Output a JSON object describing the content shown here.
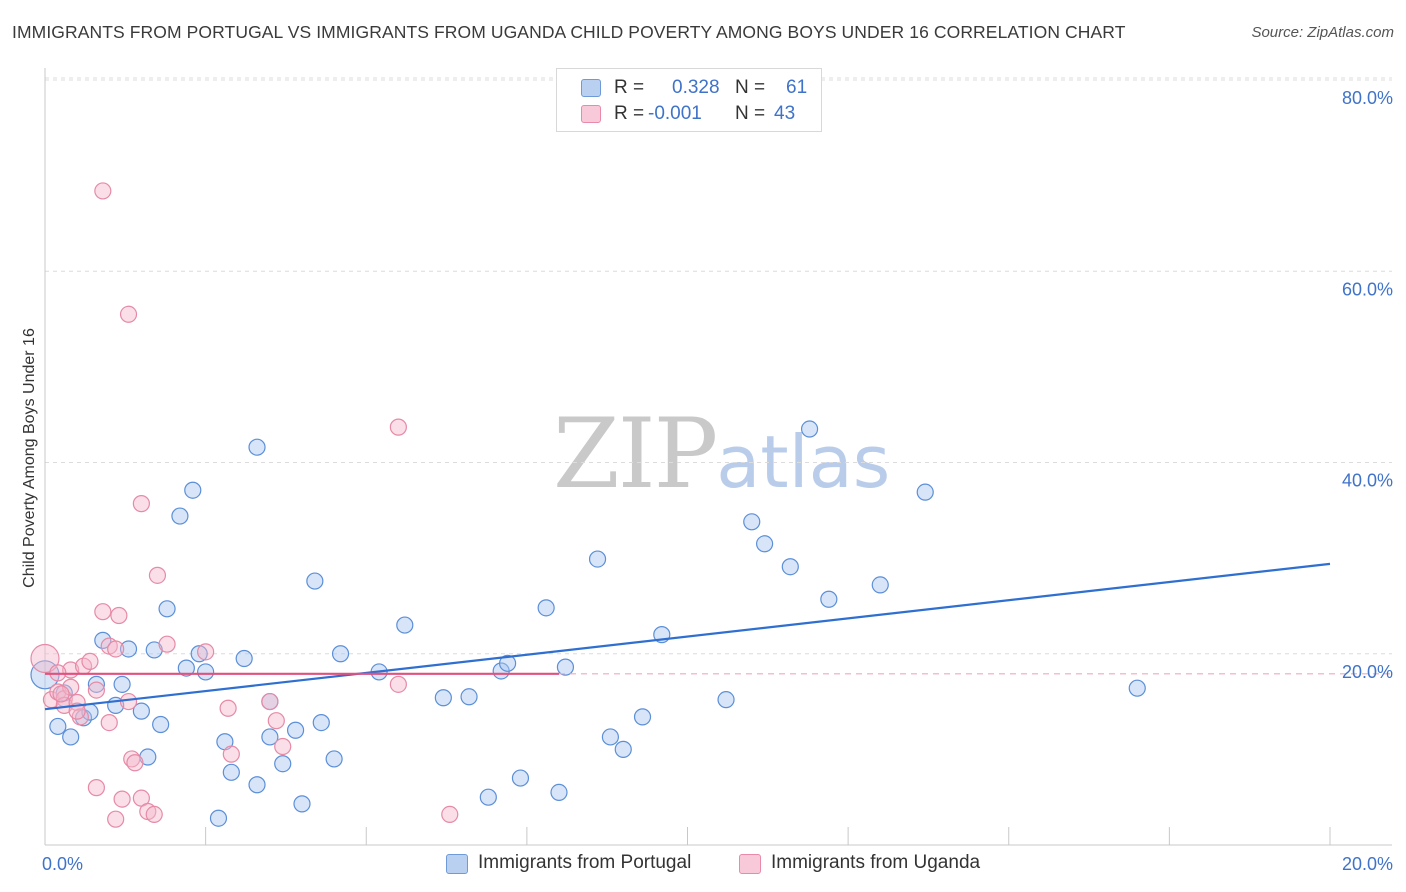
{
  "title": "IMMIGRANTS FROM PORTUGAL VS IMMIGRANTS FROM UGANDA CHILD POVERTY AMONG BOYS UNDER 16 CORRELATION CHART",
  "source": "Source: ZipAtlas.com",
  "watermark": {
    "zip": "ZIP",
    "atlas": "atlas"
  },
  "legend_top": {
    "rows": [
      {
        "r_label": "R =",
        "r_value": "0.328",
        "n_label": "N =",
        "n_value": "61",
        "color": "#a9c6ef"
      },
      {
        "r_label": "R =",
        "r_value": "-0.001",
        "n_label": "N =",
        "n_value": "43",
        "color": "#f5b9cc"
      }
    ]
  },
  "legend_bottom": [
    {
      "label": "Immigrants from Portugal",
      "color": "#a9c6ef"
    },
    {
      "label": "Immigrants from Uganda",
      "color": "#f5b9cc"
    }
  ],
  "chart_data": {
    "type": "scatter",
    "title": "IMMIGRANTS FROM PORTUGAL VS IMMIGRANTS FROM UGANDA CHILD POVERTY AMONG BOYS UNDER 16 CORRELATION CHART",
    "xlabel": "",
    "ylabel": "Child Poverty Among Boys Under 16",
    "xlim": [
      0,
      20
    ],
    "ylim": [
      0,
      80
    ],
    "x_ticks": [
      "0.0%",
      "20.0%"
    ],
    "y_ticks": [
      "20.0%",
      "40.0%",
      "60.0%",
      "80.0%"
    ],
    "y_tick_values": [
      20,
      40,
      60,
      80
    ],
    "grid": true,
    "series": [
      {
        "name": "Immigrants from Portugal",
        "color": "#5b8fd8",
        "fill": "#a9c6ef",
        "r": "0.328",
        "n": "61",
        "trend": [
          [
            0,
            14.2
          ],
          [
            20,
            29.4
          ]
        ],
        "points": [
          [
            0.0,
            17.8
          ],
          [
            0.2,
            12.4
          ],
          [
            0.4,
            11.3
          ],
          [
            0.6,
            13.3
          ],
          [
            0.7,
            13.9
          ],
          [
            0.8,
            16.8
          ],
          [
            0.9,
            21.4
          ],
          [
            1.1,
            14.6
          ],
          [
            1.2,
            16.8
          ],
          [
            1.3,
            20.5
          ],
          [
            1.5,
            14.0
          ],
          [
            1.6,
            9.2
          ],
          [
            1.7,
            20.4
          ],
          [
            1.8,
            12.6
          ],
          [
            1.9,
            24.7
          ],
          [
            2.1,
            34.4
          ],
          [
            2.2,
            18.5
          ],
          [
            2.3,
            37.1
          ],
          [
            2.4,
            20.0
          ],
          [
            2.5,
            18.1
          ],
          [
            2.7,
            2.8
          ],
          [
            2.8,
            10.8
          ],
          [
            2.9,
            7.6
          ],
          [
            3.1,
            19.5
          ],
          [
            3.3,
            41.6
          ],
          [
            3.3,
            6.3
          ],
          [
            3.5,
            11.3
          ],
          [
            3.5,
            15.0
          ],
          [
            3.7,
            8.5
          ],
          [
            3.9,
            12.0
          ],
          [
            4.0,
            4.3
          ],
          [
            4.2,
            27.6
          ],
          [
            4.3,
            12.8
          ],
          [
            4.5,
            9.0
          ],
          [
            4.6,
            20.0
          ],
          [
            5.2,
            18.1
          ],
          [
            5.6,
            23.0
          ],
          [
            6.2,
            15.4
          ],
          [
            6.6,
            15.5
          ],
          [
            6.9,
            5.0
          ],
          [
            7.1,
            18.2
          ],
          [
            7.2,
            19.0
          ],
          [
            7.4,
            7.0
          ],
          [
            7.8,
            24.8
          ],
          [
            8.0,
            5.5
          ],
          [
            8.1,
            18.6
          ],
          [
            8.6,
            29.9
          ],
          [
            8.8,
            11.3
          ],
          [
            9.0,
            10.0
          ],
          [
            9.3,
            13.4
          ],
          [
            9.6,
            22.0
          ],
          [
            10.6,
            15.2
          ],
          [
            11.0,
            33.8
          ],
          [
            11.2,
            31.5
          ],
          [
            11.6,
            29.1
          ],
          [
            11.9,
            43.5
          ],
          [
            12.2,
            25.7
          ],
          [
            13.0,
            27.2
          ],
          [
            13.7,
            36.9
          ],
          [
            17.0,
            16.4
          ],
          [
            0.3,
            15.9
          ]
        ]
      },
      {
        "name": "Immigrants from Uganda",
        "color": "#e68aa6",
        "fill": "#f5b9cc",
        "r": "-0.001",
        "n": "43",
        "trend": [
          [
            0,
            17.9
          ],
          [
            8.0,
            17.9
          ]
        ],
        "trend_dashed": [
          [
            8.0,
            17.9
          ],
          [
            20,
            17.9
          ]
        ],
        "points": [
          [
            0.0,
            19.5
          ],
          [
            0.1,
            15.2
          ],
          [
            0.2,
            16.0
          ],
          [
            0.3,
            15.3
          ],
          [
            0.3,
            14.6
          ],
          [
            0.4,
            16.5
          ],
          [
            0.4,
            18.3
          ],
          [
            0.5,
            14.9
          ],
          [
            0.55,
            13.4
          ],
          [
            0.6,
            18.7
          ],
          [
            0.7,
            19.2
          ],
          [
            0.8,
            6.0
          ],
          [
            0.9,
            24.4
          ],
          [
            0.9,
            68.4
          ],
          [
            1.0,
            12.8
          ],
          [
            1.0,
            20.8
          ],
          [
            1.1,
            2.7
          ],
          [
            1.1,
            20.5
          ],
          [
            1.15,
            24.0
          ],
          [
            1.2,
            4.8
          ],
          [
            1.3,
            55.5
          ],
          [
            1.3,
            15.0
          ],
          [
            1.35,
            9.0
          ],
          [
            1.4,
            8.6
          ],
          [
            1.5,
            4.9
          ],
          [
            1.5,
            35.7
          ],
          [
            1.6,
            3.5
          ],
          [
            1.7,
            3.2
          ],
          [
            1.75,
            28.2
          ],
          [
            1.9,
            21.0
          ],
          [
            2.5,
            20.2
          ],
          [
            2.85,
            14.3
          ],
          [
            2.9,
            9.5
          ],
          [
            3.5,
            15.0
          ],
          [
            3.6,
            13.0
          ],
          [
            3.7,
            10.3
          ],
          [
            5.5,
            43.7
          ],
          [
            5.5,
            16.8
          ],
          [
            6.3,
            3.2
          ],
          [
            0.2,
            18.0
          ],
          [
            0.5,
            14.0
          ],
          [
            0.25,
            15.8
          ],
          [
            0.8,
            16.2
          ]
        ]
      }
    ]
  }
}
